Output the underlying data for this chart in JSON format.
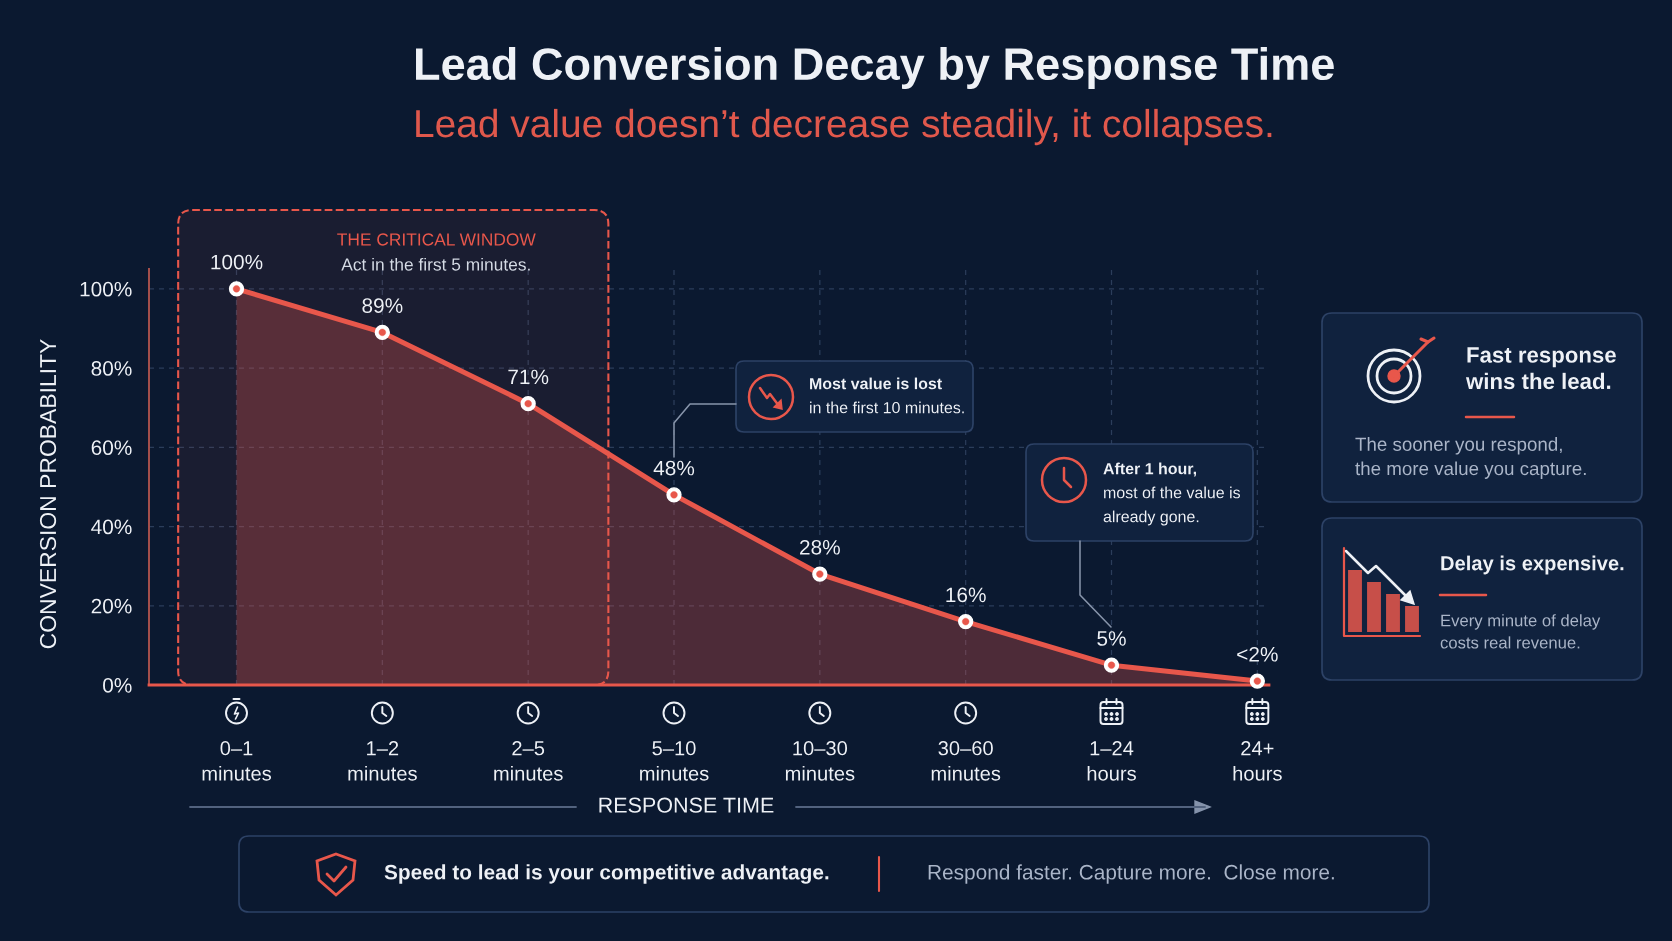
{
  "chart_data": {
    "type": "area",
    "title": "Lead Conversion Decay by Response Time",
    "subtitle": "Lead value doesn’t decrease steadily, it collapses.",
    "xlabel": "RESPONSE TIME",
    "ylabel": "CONVERSION PROBABILITY",
    "categories": [
      "0–1 minutes",
      "1–2 minutes",
      "2–5 minutes",
      "5–10 minutes",
      "10–30 minutes",
      "30–60 minutes",
      "1–24 hours",
      "24+ hours"
    ],
    "series": [
      {
        "color": "#e8574b",
        "values": [
          100,
          89,
          71,
          48,
          28,
          16,
          5,
          1
        ],
        "value_labels": [
          "100%",
          "89%",
          "71%",
          "48%",
          "28%",
          "16%",
          "5%",
          "<2%"
        ]
      }
    ],
    "ylim": [
      0,
      105
    ],
    "yticks": [
      {
        "value": 0,
        "label": "0%"
      },
      {
        "value": 20,
        "label": "20%"
      },
      {
        "value": 40,
        "label": "40%"
      },
      {
        "value": 60,
        "label": "60%"
      },
      {
        "value": 80,
        "label": "80%"
      },
      {
        "value": 100,
        "label": "100%"
      }
    ],
    "grid": true,
    "marker": "circle",
    "line_style": "solid",
    "bands": [
      {
        "axis": "x",
        "from": "0–1 minutes",
        "to": "2–5 minutes",
        "label": "THE CRITICAL WINDOW",
        "color": "#e8574b"
      }
    ],
    "annotations": [
      "Act in the first 5 minutes.",
      "Most value is lost\nin the first 10 minutes.",
      "After 1 hour,\nmost of the value is\nalready gone.",
      "Fast response\nwins the lead.",
      "The sooner you respond,\nthe more value you capture.",
      "Delay is expensive.",
      "Every minute of delay\ncosts real revenue.",
      "Speed to lead is your competitive advantage.",
      "Respond faster. Capture more.  Close more."
    ]
  }
}
